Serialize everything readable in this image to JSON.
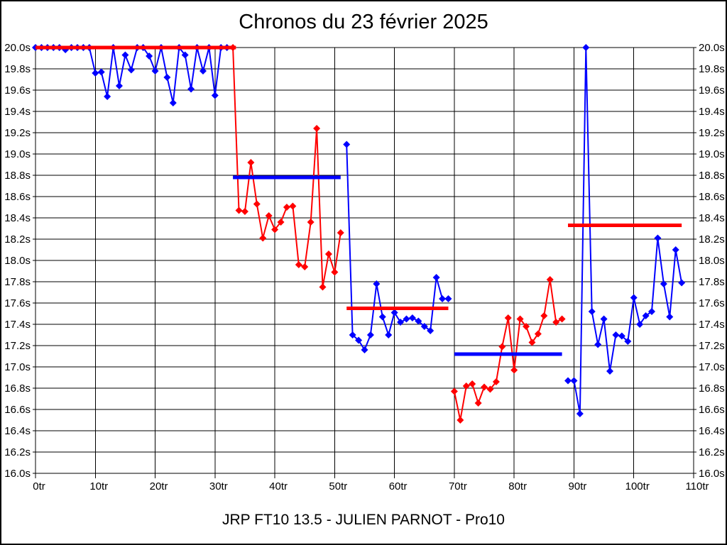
{
  "page": {
    "title": "Chronos du 23 février 2025",
    "caption": "JRP FT10 13.5 - JULIEN PARNOT - Pro10",
    "background": "#ffffff",
    "border_color": "#000000"
  },
  "chart_data": {
    "type": "line",
    "title": "Chronos du 23 février 2025",
    "subtitle": "JRP FT10 13.5 - JULIEN PARNOT - Pro10",
    "marker": "diamond",
    "grid": true,
    "x_unit": "tr",
    "y_unit": "s",
    "xlim": [
      0,
      110
    ],
    "ylim": [
      16.0,
      20.0
    ],
    "colors": {
      "blue": "#0000ff",
      "red": "#ff0000",
      "grid": "#000000",
      "text": "#000000"
    },
    "x_ticks": [
      {
        "value": 0,
        "label": "0tr"
      },
      {
        "value": 10,
        "label": "10tr"
      },
      {
        "value": 20,
        "label": "20tr"
      },
      {
        "value": 30,
        "label": "30tr"
      },
      {
        "value": 40,
        "label": "40tr"
      },
      {
        "value": 50,
        "label": "50tr"
      },
      {
        "value": 60,
        "label": "60tr"
      },
      {
        "value": 70,
        "label": "70tr"
      },
      {
        "value": 80,
        "label": "80tr"
      },
      {
        "value": 90,
        "label": "90tr"
      },
      {
        "value": 100,
        "label": "100tr"
      },
      {
        "value": 110,
        "label": "110tr"
      }
    ],
    "y_ticks": [
      {
        "value": 20.0,
        "label": "20.0s"
      },
      {
        "value": 19.8,
        "label": "19.8s"
      },
      {
        "value": 19.6,
        "label": "19.6s"
      },
      {
        "value": 19.4,
        "label": "19.4s"
      },
      {
        "value": 19.2,
        "label": "19.2s"
      },
      {
        "value": 19.0,
        "label": "19.0s"
      },
      {
        "value": 18.8,
        "label": "18.8s"
      },
      {
        "value": 18.6,
        "label": "18.6s"
      },
      {
        "value": 18.4,
        "label": "18.4s"
      },
      {
        "value": 18.2,
        "label": "18.2s"
      },
      {
        "value": 18.0,
        "label": "18.0s"
      },
      {
        "value": 17.8,
        "label": "17.8s"
      },
      {
        "value": 17.6,
        "label": "17.6s"
      },
      {
        "value": 17.4,
        "label": "17.4s"
      },
      {
        "value": 17.2,
        "label": "17.2s"
      },
      {
        "value": 17.0,
        "label": "17.0s"
      },
      {
        "value": 16.8,
        "label": "16.8s"
      },
      {
        "value": 16.6,
        "label": "16.6s"
      },
      {
        "value": 16.4,
        "label": "16.4s"
      },
      {
        "value": 16.2,
        "label": "16.2s"
      },
      {
        "value": 16.0,
        "label": "16.0s"
      }
    ],
    "series": [
      {
        "name": "segment-1",
        "color": "blue",
        "points": [
          [
            0,
            20.0
          ],
          [
            1,
            20.0
          ],
          [
            2,
            20.0
          ],
          [
            3,
            20.0
          ],
          [
            4,
            20.0
          ],
          [
            5,
            19.98
          ],
          [
            6,
            20.0
          ],
          [
            7,
            20.0
          ],
          [
            8,
            20.0
          ],
          [
            9,
            20.0
          ],
          [
            10,
            19.76
          ],
          [
            11,
            19.77
          ],
          [
            12,
            19.54
          ],
          [
            13,
            20.0
          ],
          [
            14,
            19.64
          ],
          [
            15,
            19.93
          ],
          [
            16,
            19.79
          ],
          [
            17,
            20.0
          ],
          [
            18,
            20.0
          ],
          [
            19,
            19.92
          ],
          [
            20,
            19.78
          ],
          [
            21,
            20.0
          ],
          [
            22,
            19.72
          ],
          [
            23,
            19.48
          ],
          [
            24,
            20.0
          ],
          [
            25,
            19.93
          ],
          [
            26,
            19.61
          ],
          [
            27,
            20.0
          ],
          [
            28,
            19.78
          ],
          [
            29,
            20.0
          ],
          [
            30,
            19.55
          ],
          [
            31,
            20.0
          ],
          [
            32,
            20.0
          ]
        ]
      },
      {
        "name": "segment-2",
        "color": "red",
        "points": [
          [
            33,
            20.0
          ],
          [
            34,
            18.47
          ],
          [
            35,
            18.46
          ],
          [
            36,
            18.92
          ],
          [
            37,
            18.53
          ],
          [
            38,
            18.21
          ],
          [
            39,
            18.42
          ],
          [
            40,
            18.29
          ],
          [
            41,
            18.36
          ],
          [
            42,
            18.5
          ],
          [
            43,
            18.51
          ],
          [
            44,
            17.96
          ],
          [
            45,
            17.94
          ],
          [
            46,
            18.36
          ],
          [
            47,
            19.24
          ],
          [
            48,
            17.75
          ],
          [
            49,
            18.06
          ],
          [
            50,
            17.89
          ],
          [
            51,
            18.26
          ]
        ]
      },
      {
        "name": "segment-3",
        "color": "blue",
        "points": [
          [
            52,
            19.09
          ],
          [
            53,
            17.3
          ],
          [
            54,
            17.25
          ],
          [
            55,
            17.16
          ],
          [
            56,
            17.3
          ],
          [
            57,
            17.78
          ],
          [
            58,
            17.47
          ],
          [
            59,
            17.3
          ],
          [
            60,
            17.51
          ],
          [
            61,
            17.42
          ],
          [
            62,
            17.45
          ],
          [
            63,
            17.46
          ],
          [
            64,
            17.43
          ],
          [
            65,
            17.38
          ],
          [
            66,
            17.34
          ],
          [
            67,
            17.84
          ],
          [
            68,
            17.64
          ],
          [
            69,
            17.64
          ]
        ]
      },
      {
        "name": "segment-4",
        "color": "red",
        "points": [
          [
            70,
            16.77
          ],
          [
            71,
            16.5
          ],
          [
            72,
            16.82
          ],
          [
            73,
            16.84
          ],
          [
            74,
            16.66
          ],
          [
            75,
            16.81
          ],
          [
            76,
            16.79
          ],
          [
            77,
            16.86
          ],
          [
            78,
            17.19
          ],
          [
            79,
            17.46
          ],
          [
            80,
            16.97
          ],
          [
            81,
            17.45
          ],
          [
            82,
            17.38
          ],
          [
            83,
            17.23
          ],
          [
            84,
            17.31
          ],
          [
            85,
            17.48
          ],
          [
            86,
            17.82
          ],
          [
            87,
            17.42
          ],
          [
            88,
            17.45
          ]
        ]
      },
      {
        "name": "segment-5",
        "color": "blue",
        "points": [
          [
            89,
            16.87
          ],
          [
            90,
            16.87
          ],
          [
            91,
            16.56
          ],
          [
            92,
            20.0
          ],
          [
            93,
            17.52
          ],
          [
            94,
            17.21
          ],
          [
            95,
            17.45
          ],
          [
            96,
            16.96
          ],
          [
            97,
            17.3
          ],
          [
            98,
            17.29
          ],
          [
            99,
            17.24
          ],
          [
            100,
            17.65
          ],
          [
            101,
            17.4
          ],
          [
            102,
            17.48
          ],
          [
            103,
            17.52
          ],
          [
            104,
            18.21
          ],
          [
            105,
            17.78
          ],
          [
            106,
            17.47
          ],
          [
            107,
            18.1
          ],
          [
            108,
            17.79
          ]
        ]
      }
    ],
    "average_lines": [
      {
        "segment": "segment-1",
        "color": "red",
        "value": 20.0,
        "x_from": 0,
        "x_to": 33.5
      },
      {
        "segment": "segment-2",
        "color": "blue",
        "value": 18.78,
        "x_from": 33,
        "x_to": 51
      },
      {
        "segment": "segment-3",
        "color": "red",
        "value": 17.55,
        "x_from": 52,
        "x_to": 69
      },
      {
        "segment": "segment-4",
        "color": "blue",
        "value": 17.12,
        "x_from": 70,
        "x_to": 88
      },
      {
        "segment": "segment-5",
        "color": "red",
        "value": 18.33,
        "x_from": 89,
        "x_to": 108
      }
    ]
  }
}
